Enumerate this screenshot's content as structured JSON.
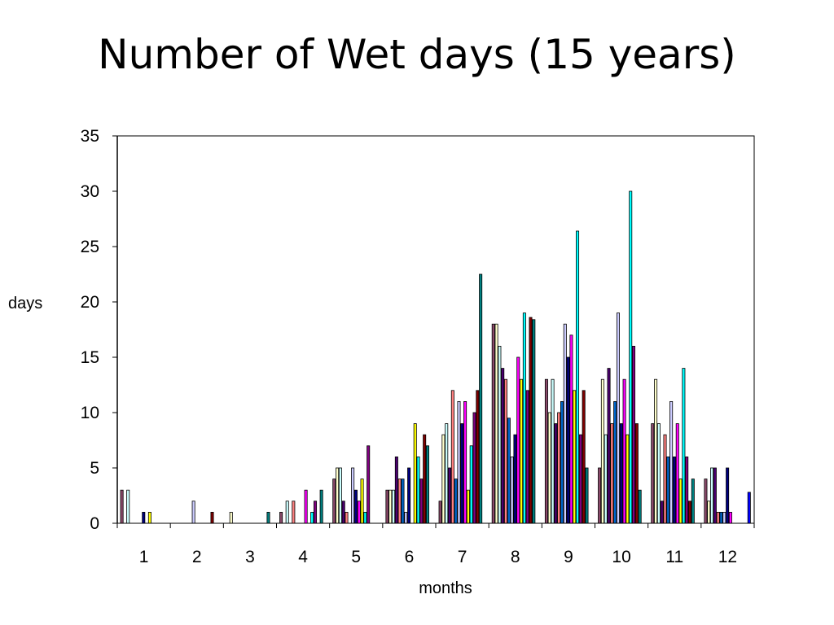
{
  "title": "Number of Wet days (15 years)",
  "chart_data": {
    "type": "bar",
    "title": "Number of Wet days (15 years)",
    "xlabel": "months",
    "ylabel": "days",
    "categories": [
      "1",
      "2",
      "3",
      "4",
      "5",
      "6",
      "7",
      "8",
      "9",
      "10",
      "11",
      "12"
    ],
    "ylim": [
      0,
      35
    ],
    "yticks": [
      0,
      5,
      10,
      15,
      20,
      25,
      30,
      35
    ],
    "grid": false,
    "legend": "none",
    "bars_per_category": 15,
    "colors": [
      "#8b4a6b",
      "#ffffcc",
      "#ccffff",
      "#4b0070",
      "#ff8080",
      "#0066cc",
      "#ccccff",
      "#000080",
      "#ff00ff",
      "#ffff00",
      "#00ffff",
      "#800080",
      "#800000",
      "#008080",
      "#0000ff"
    ],
    "values": [
      [
        3,
        0,
        3,
        0,
        0,
        0,
        0,
        1,
        0,
        1,
        0,
        0,
        0,
        0,
        0
      ],
      [
        0,
        0,
        0,
        0,
        0,
        0,
        2,
        0,
        0,
        0,
        0,
        0,
        1,
        0,
        0
      ],
      [
        0,
        1,
        0,
        0,
        0,
        0,
        0,
        0,
        0,
        0,
        0,
        0,
        0,
        1,
        0
      ],
      [
        1,
        0,
        2,
        0,
        2,
        0,
        0,
        0,
        3,
        0,
        1,
        2,
        0,
        3,
        0
      ],
      [
        4,
        5,
        5,
        2,
        1,
        0,
        5,
        3,
        2,
        4,
        1,
        7,
        0,
        0,
        0
      ],
      [
        3,
        3,
        3,
        6,
        4,
        4,
        1,
        5,
        0,
        9,
        6,
        4,
        8,
        7,
        0
      ],
      [
        2,
        8,
        9,
        5,
        12,
        4,
        11,
        9,
        11,
        3,
        7,
        10,
        12,
        22.5,
        0
      ],
      [
        18,
        18,
        16,
        14,
        13,
        9.5,
        6,
        8,
        15,
        13,
        19,
        12,
        18.6,
        18.4,
        0
      ],
      [
        13,
        10,
        13,
        9,
        10,
        11,
        18,
        15,
        17,
        12,
        26.4,
        8,
        12,
        5,
        0
      ],
      [
        5,
        13,
        8,
        14,
        9,
        11,
        19,
        9,
        13,
        8,
        30,
        16,
        9,
        3,
        0
      ],
      [
        9,
        13,
        9,
        2,
        8,
        6,
        11,
        6,
        9,
        4,
        14,
        6,
        2,
        4,
        0
      ],
      [
        4,
        2,
        5,
        5,
        1,
        1,
        1,
        5,
        1,
        0,
        0,
        0,
        0,
        0,
        2.8
      ]
    ]
  }
}
